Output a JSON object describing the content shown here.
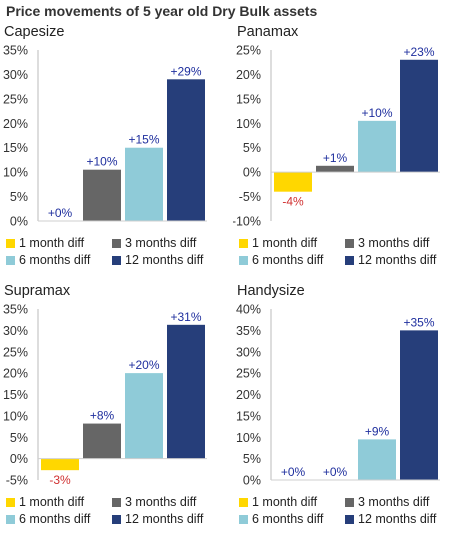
{
  "title": "Price movements of 5 year old Dry Bulk assets",
  "colors": {
    "one_month": "#ffd700",
    "three_months": "#666666",
    "six_months": "#8fcbd8",
    "twelve_months": "#263e7a",
    "positive_label": "#1f2f9e",
    "negative_label": "#d03030"
  },
  "legend": [
    "1 month diff",
    "3 months diff",
    "6 months diff",
    "12 months diff"
  ],
  "chart_data": [
    {
      "type": "bar",
      "title": "Capesize",
      "categories": [
        "1 month diff",
        "3 months diff",
        "6 months diff",
        "12 months diff"
      ],
      "values": [
        0,
        10.5,
        15,
        29
      ],
      "data_labels": [
        "+0%",
        "+10%",
        "+15%",
        "+29%"
      ],
      "yticks": [
        "0%",
        "5%",
        "10%",
        "15%",
        "20%",
        "25%",
        "30%",
        "35%"
      ],
      "ylim": [
        0,
        35
      ],
      "legend": "bottom"
    },
    {
      "type": "bar",
      "title": "Panamax",
      "categories": [
        "1 month diff",
        "3 months diff",
        "6 months diff",
        "12 months diff"
      ],
      "values": [
        -4,
        1.3,
        10.5,
        23
      ],
      "data_labels": [
        "-4%",
        "+1%",
        "+10%",
        "+23%"
      ],
      "yticks": [
        "-10%",
        "-5%",
        "0%",
        "5%",
        "10%",
        "15%",
        "20%",
        "25%"
      ],
      "ylim": [
        -10,
        25
      ],
      "legend": "bottom"
    },
    {
      "type": "bar",
      "title": "Supramax",
      "categories": [
        "1 month diff",
        "3 months diff",
        "6 months diff",
        "12 months diff"
      ],
      "values": [
        -2.7,
        8.2,
        20,
        31.3
      ],
      "data_labels": [
        "-3%",
        "+8%",
        "+20%",
        "+31%"
      ],
      "yticks": [
        "-5%",
        "0%",
        "5%",
        "10%",
        "15%",
        "20%",
        "25%",
        "30%",
        "35%"
      ],
      "ylim": [
        -5,
        35
      ],
      "legend": "bottom"
    },
    {
      "type": "bar",
      "title": "Handysize",
      "categories": [
        "1 month diff",
        "3 months diff",
        "6 months diff",
        "12 months diff"
      ],
      "values": [
        0,
        0,
        9.5,
        35
      ],
      "data_labels": [
        "+0%",
        "+0%",
        "+9%",
        "+35%"
      ],
      "yticks": [
        "0%",
        "5%",
        "10%",
        "15%",
        "20%",
        "25%",
        "30%",
        "35%",
        "40%"
      ],
      "ylim": [
        0,
        40
      ],
      "legend": "bottom"
    }
  ]
}
